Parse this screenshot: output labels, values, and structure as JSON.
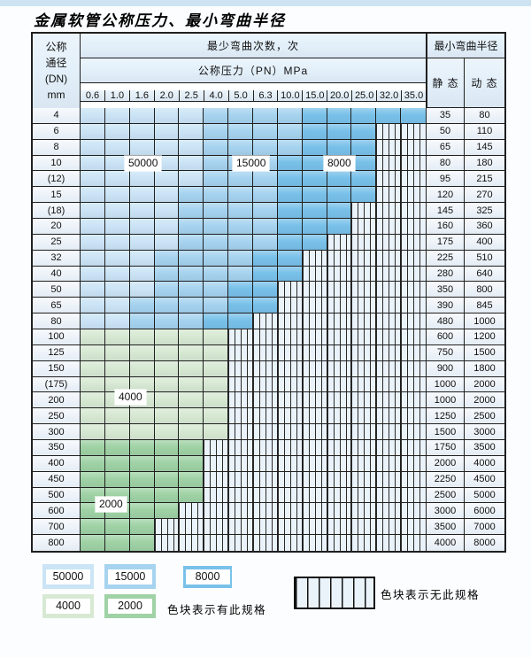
{
  "header": {
    "dn_lines": [
      "公称",
      "通径",
      "(DN)",
      "mm"
    ],
    "bend_times": "最少弯曲次数，次",
    "pressure": "公称压力（PN）MPa",
    "min_radius": "最小弯曲半径",
    "static_label": "静 态",
    "dynamic_label": "动 态"
  },
  "overlay_labels": [
    "50000",
    "15000",
    "8000",
    "4000",
    "2000"
  ],
  "legend": {
    "items": [
      "50000",
      "15000",
      "8000",
      "4000",
      "2000"
    ],
    "has_spec_label": "色块表示有此规格",
    "no_spec_label": "色块表示无此规格"
  },
  "colors": {
    "A": "#cbe4f6",
    "B": "#a6d3ef",
    "C": "#79c1e9",
    "D": "#d7e9d3",
    "E": "#9fd2a5",
    "hatchBg": "#eaf2fa",
    "hatchLine": "#2a2a2a",
    "grid": "#1f1f1f",
    "headerBg": "#e2eff9",
    "labelBg": "#eef5fc",
    "pageBg": "#fbfdfe",
    "topStrip": "#cde3f2"
  },
  "chart_data": {
    "type": "table",
    "title": "金属软管公称压力、最小弯曲半径",
    "x_axis_label": "公称压力（PN）MPa",
    "y_axis_label": "公称通径 (DN) mm",
    "columns": [
      "0.6",
      "1.0",
      "1.6",
      "2.0",
      "2.5",
      "4.0",
      "5.0",
      "6.3",
      "10.0",
      "15.0",
      "20.0",
      "25.0",
      "32.0",
      "35.0"
    ],
    "value_columns": [
      "静 态",
      "动 态"
    ],
    "cell_codes": {
      "A": "50000",
      "B": "15000",
      "C": "8000",
      "D": "4000",
      "E": "2000",
      "X": "无此规格"
    },
    "rows": [
      {
        "dn": "4",
        "cells": "AAAAABBBBCCCCC",
        "static": "35",
        "dynamic": "80"
      },
      {
        "dn": "6",
        "cells": "AAAAABBBBCCCXX",
        "static": "50",
        "dynamic": "110"
      },
      {
        "dn": "8",
        "cells": "AAAAABBBBCCCXX",
        "static": "65",
        "dynamic": "145"
      },
      {
        "dn": "10",
        "cells": "AAAAABBBCCCCXX",
        "static": "80",
        "dynamic": "180"
      },
      {
        "dn": "(12)",
        "cells": "AAAAABBBCCCCXX",
        "static": "95",
        "dynamic": "215"
      },
      {
        "dn": "15",
        "cells": "AAAABBBBCCCCXX",
        "static": "120",
        "dynamic": "270"
      },
      {
        "dn": "(18)",
        "cells": "AAAABBBBCCCXXX",
        "static": "145",
        "dynamic": "325"
      },
      {
        "dn": "20",
        "cells": "AAAABBBBCCCXXX",
        "static": "160",
        "dynamic": "360"
      },
      {
        "dn": "25",
        "cells": "AAAABBBBCCXXXX",
        "static": "175",
        "dynamic": "400"
      },
      {
        "dn": "32",
        "cells": "AAABBBBCCXXXXX",
        "static": "225",
        "dynamic": "510"
      },
      {
        "dn": "40",
        "cells": "AAABBBBCCXXXXX",
        "static": "280",
        "dynamic": "640"
      },
      {
        "dn": "50",
        "cells": "AAABBBCCXXXXXX",
        "static": "350",
        "dynamic": "800"
      },
      {
        "dn": "65",
        "cells": "AABBBBCCXXXXXX",
        "static": "390",
        "dynamic": "845"
      },
      {
        "dn": "80",
        "cells": "AABBBCCXXXXXXX",
        "static": "480",
        "dynamic": "1000"
      },
      {
        "dn": "100",
        "cells": "DDDDDDXXXXXXXX",
        "static": "600",
        "dynamic": "1200"
      },
      {
        "dn": "125",
        "cells": "DDDDDDXXXXXXXX",
        "static": "750",
        "dynamic": "1500"
      },
      {
        "dn": "150",
        "cells": "DDDDDDXXXXXXXX",
        "static": "900",
        "dynamic": "1800"
      },
      {
        "dn": "(175)",
        "cells": "DDDDDDXXXXXXXX",
        "static": "1000",
        "dynamic": "2000"
      },
      {
        "dn": "200",
        "cells": "DDDDDDXXXXXXXX",
        "static": "1000",
        "dynamic": "2000"
      },
      {
        "dn": "250",
        "cells": "DDDDDDXXXXXXXX",
        "static": "1250",
        "dynamic": "2500"
      },
      {
        "dn": "300",
        "cells": "DDDDDDXXXXXXXX",
        "static": "1500",
        "dynamic": "3000"
      },
      {
        "dn": "350",
        "cells": "EEEEEXXXXXXXXX",
        "static": "1750",
        "dynamic": "3500"
      },
      {
        "dn": "400",
        "cells": "EEEEEXXXXXXXXX",
        "static": "2000",
        "dynamic": "4000"
      },
      {
        "dn": "450",
        "cells": "EEEEEXXXXXXXXX",
        "static": "2250",
        "dynamic": "4500"
      },
      {
        "dn": "500",
        "cells": "EEEEEXXXXXXXXX",
        "static": "2500",
        "dynamic": "5000"
      },
      {
        "dn": "600",
        "cells": "EEEEXXXXXXXXXX",
        "static": "3000",
        "dynamic": "6000"
      },
      {
        "dn": "700",
        "cells": "EEEXXXXXXXXXXX",
        "static": "3500",
        "dynamic": "7000"
      },
      {
        "dn": "800",
        "cells": "EEEXXXXXXXXXXX",
        "static": "4000",
        "dynamic": "8000"
      }
    ]
  }
}
